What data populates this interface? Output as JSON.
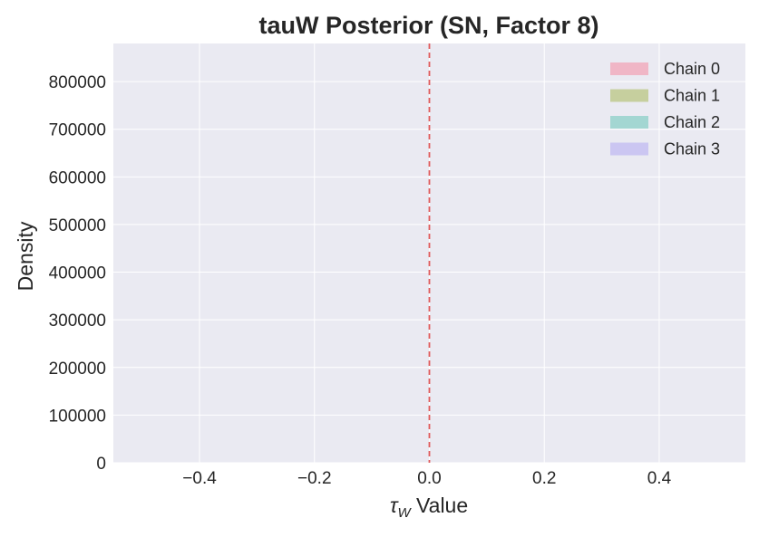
{
  "chart_data": {
    "type": "area",
    "title": "tauW Posterior (SN, Factor 8)",
    "xlabel_symbol": "τ",
    "xlabel_subscript": "W",
    "xlabel_suffix": " Value",
    "ylabel": "Density",
    "xlim": [
      -0.55,
      0.55
    ],
    "ylim": [
      0,
      880000
    ],
    "x_ticks": [
      -0.4,
      -0.2,
      0.0,
      0.2,
      0.4
    ],
    "x_tick_labels": [
      "−0.4",
      "−0.2",
      "0.0",
      "0.2",
      "0.4"
    ],
    "y_ticks": [
      0,
      100000,
      200000,
      300000,
      400000,
      500000,
      600000,
      700000,
      800000
    ],
    "y_tick_labels": [
      "0",
      "100000",
      "200000",
      "300000",
      "400000",
      "500000",
      "600000",
      "700000",
      "800000"
    ],
    "reference_line": {
      "x": 0.0,
      "color": "#e05a5a",
      "style": "dashed"
    },
    "grid": true,
    "background": "#eaeaf2",
    "legend_position": "top-right",
    "series": [
      {
        "name": "Chain 0",
        "color": "#f0b6c6",
        "values": []
      },
      {
        "name": "Chain 1",
        "color": "#c6cf9e",
        "values": []
      },
      {
        "name": "Chain 2",
        "color": "#a3d6d2",
        "values": []
      },
      {
        "name": "Chain 3",
        "color": "#cbc6f2",
        "values": []
      }
    ]
  }
}
